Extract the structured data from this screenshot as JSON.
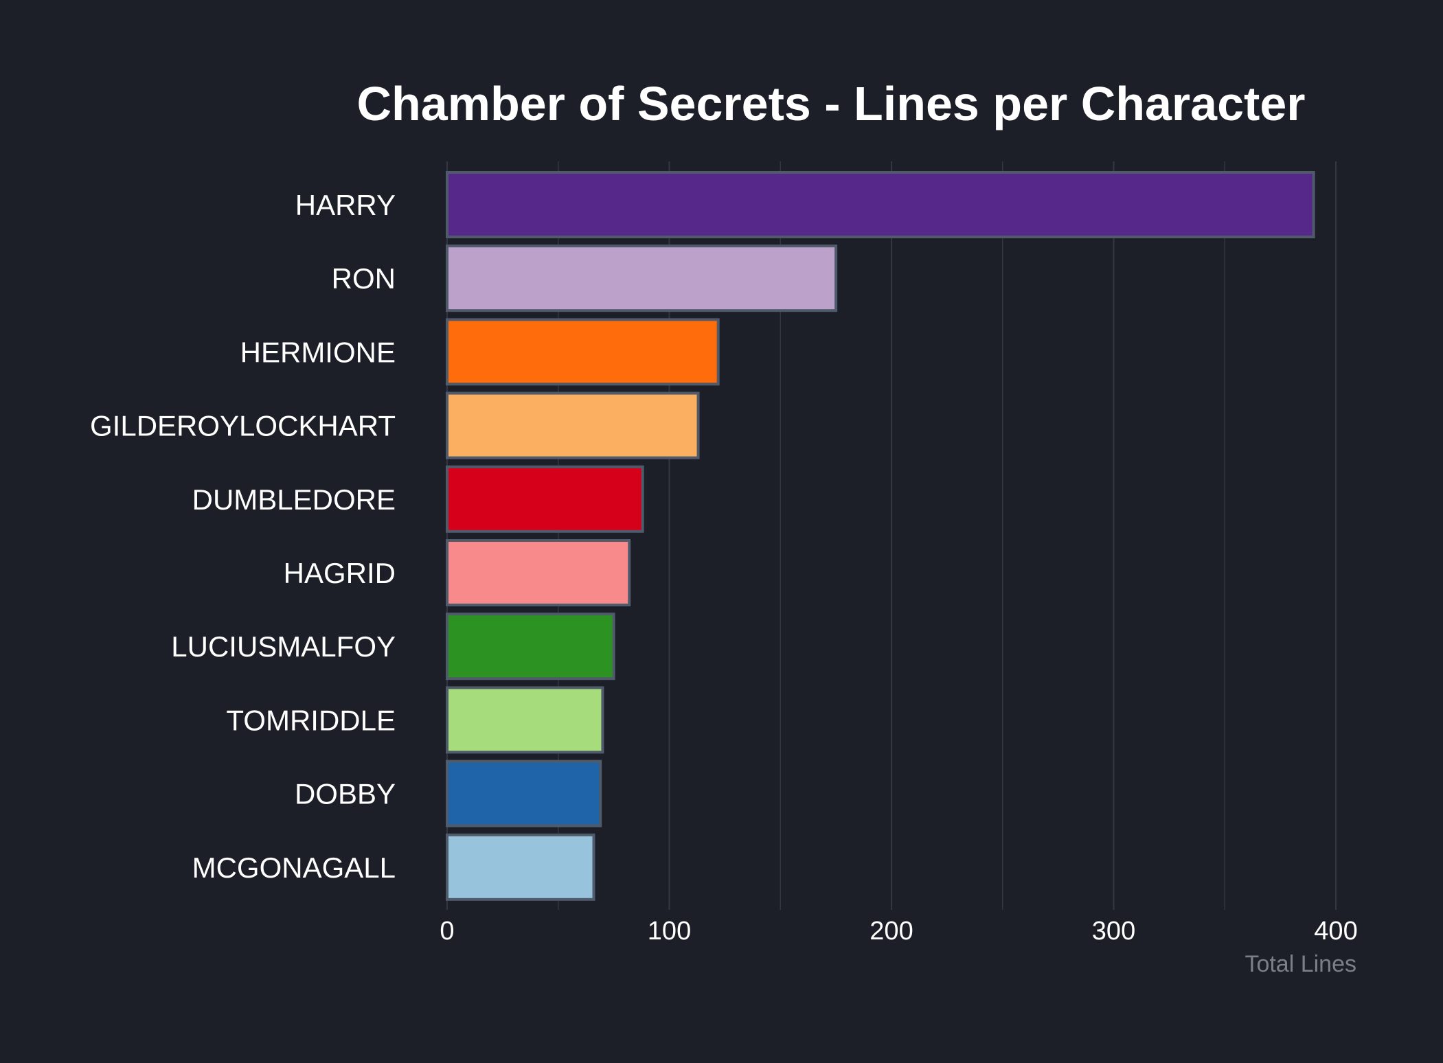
{
  "chart_data": {
    "type": "bar",
    "orientation": "horizontal",
    "title": "Chamber of Secrets - Lines per Character",
    "xlabel": "Total Lines",
    "ylabel": "",
    "xlim": [
      0,
      400
    ],
    "x_ticks": [
      0,
      100,
      200,
      300,
      400
    ],
    "grid": true,
    "legend": "none",
    "categories": [
      "HARRY",
      "RON",
      "HERMIONE",
      "GILDEROYLOCKHART",
      "DUMBLEDORE",
      "HAGRID",
      "LUCIUSMALFOY",
      "TOMRIDDLE",
      "DOBBY",
      "MCGONAGALL"
    ],
    "values": [
      390,
      175,
      122,
      113,
      88,
      82,
      75,
      70,
      69,
      66
    ],
    "colors": [
      "#55288a",
      "#bca1cb",
      "#fe6c0b",
      "#fab060",
      "#d7001b",
      "#f98a8b",
      "#2c9322",
      "#a6dc7c",
      "#1f64a8",
      "#98c3dc"
    ],
    "bar_outline_color": "#4f5a6b",
    "background_color": "#1d1f28",
    "grid_color": "#343743"
  }
}
